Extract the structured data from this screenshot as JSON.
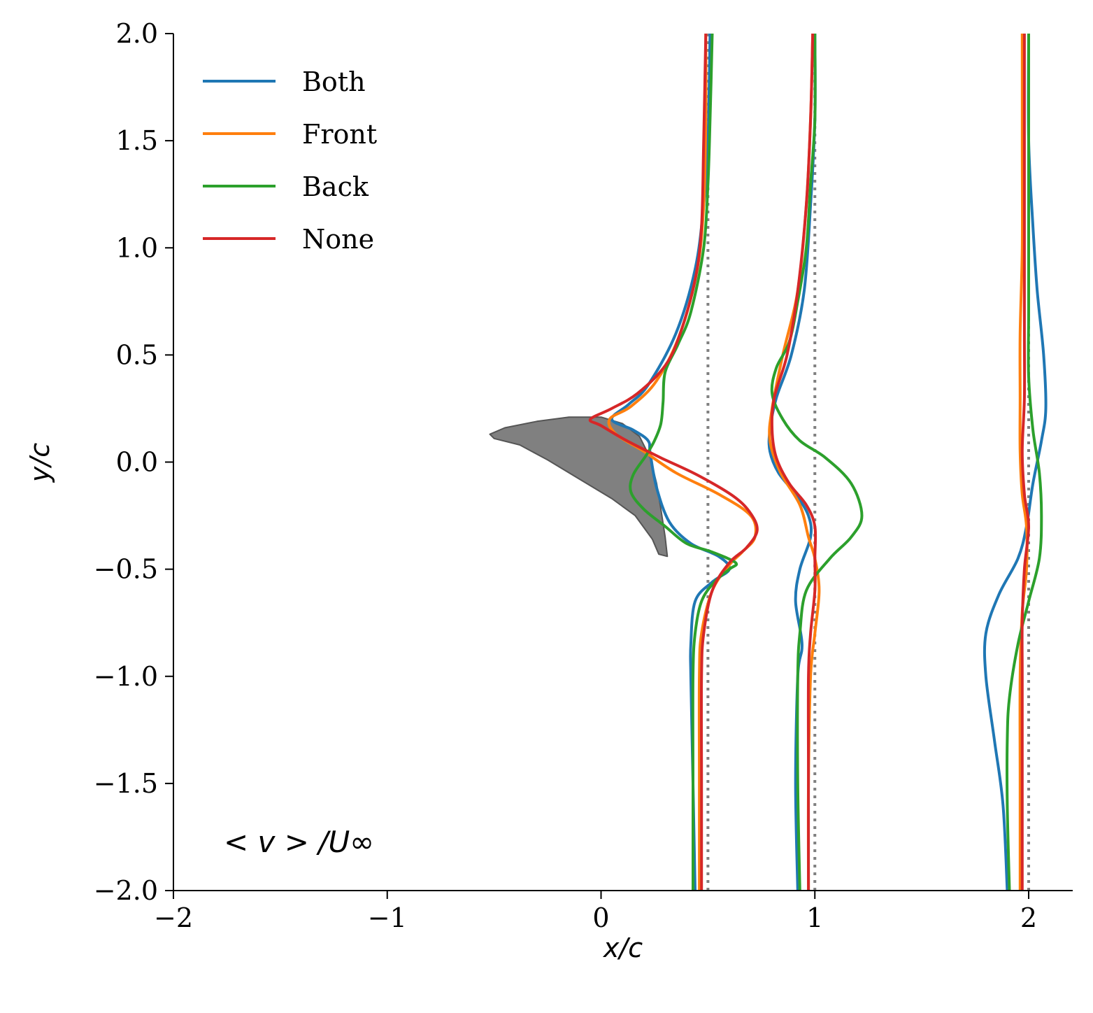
{
  "chart_data": {
    "type": "line",
    "title": "",
    "xlabel": "x/c",
    "ylabel": "y/c",
    "annotation": "< v > /U∞",
    "xlim": [
      -2,
      2.2
    ],
    "ylim": [
      -2,
      2
    ],
    "xticks": [
      -2,
      -1,
      0,
      1,
      2
    ],
    "xtick_labels": [
      "−2",
      "−1",
      "0",
      "1",
      "2"
    ],
    "yticks": [
      -2,
      -1.5,
      -1,
      -0.5,
      0,
      0.5,
      1,
      1.5,
      2
    ],
    "ytick_labels": [
      "−2.0",
      "−1.5",
      "−1.0",
      "−0.5",
      "0.0",
      "0.5",
      "1.0",
      "1.5",
      "2.0"
    ],
    "legend_position": "upper-left",
    "grid": false,
    "reference_lines": [
      0.5,
      1.0,
      2.0
    ],
    "airfoil_polygon": [
      [
        -0.52,
        0.13
      ],
      [
        -0.45,
        0.16
      ],
      [
        -0.3,
        0.19
      ],
      [
        -0.15,
        0.21
      ],
      [
        0.0,
        0.21
      ],
      [
        0.1,
        0.18
      ],
      [
        0.18,
        0.12
      ],
      [
        0.23,
        0.02
      ],
      [
        0.26,
        -0.1
      ],
      [
        0.28,
        -0.22
      ],
      [
        0.3,
        -0.35
      ],
      [
        0.31,
        -0.44
      ],
      [
        0.27,
        -0.43
      ],
      [
        0.24,
        -0.36
      ],
      [
        0.16,
        -0.25
      ],
      [
        0.05,
        -0.17
      ],
      [
        -0.1,
        -0.08
      ],
      [
        -0.25,
        0.01
      ],
      [
        -0.38,
        0.08
      ],
      [
        -0.5,
        0.11
      ]
    ],
    "series": [
      {
        "name": "Both",
        "color": "#1f77b4",
        "profiles": [
          [
            [
              0.44,
              -2.0
            ],
            [
              0.43,
              -1.5
            ],
            [
              0.42,
              -1.0
            ],
            [
              0.42,
              -0.85
            ],
            [
              0.44,
              -0.65
            ],
            [
              0.52,
              -0.56
            ],
            [
              0.6,
              -0.5
            ],
            [
              0.55,
              -0.44
            ],
            [
              0.42,
              -0.38
            ],
            [
              0.32,
              -0.28
            ],
            [
              0.26,
              -0.12
            ],
            [
              0.23,
              0.04
            ],
            [
              0.22,
              0.1
            ],
            [
              0.15,
              0.15
            ],
            [
              0.05,
              0.2
            ],
            [
              0.13,
              0.27
            ],
            [
              0.22,
              0.36
            ],
            [
              0.35,
              0.6
            ],
            [
              0.44,
              0.9
            ],
            [
              0.48,
              1.2
            ],
            [
              0.5,
              1.5
            ],
            [
              0.51,
              2.0
            ]
          ],
          [
            [
              0.92,
              -2.0
            ],
            [
              0.91,
              -1.5
            ],
            [
              0.92,
              -1.0
            ],
            [
              0.94,
              -0.85
            ],
            [
              0.91,
              -0.65
            ],
            [
              0.93,
              -0.5
            ],
            [
              0.98,
              -0.35
            ],
            [
              0.97,
              -0.25
            ],
            [
              0.91,
              -0.15
            ],
            [
              0.83,
              -0.05
            ],
            [
              0.79,
              0.05
            ],
            [
              0.79,
              0.15
            ],
            [
              0.82,
              0.3
            ],
            [
              0.89,
              0.5
            ],
            [
              0.95,
              0.8
            ],
            [
              0.98,
              1.2
            ],
            [
              1.0,
              1.6
            ],
            [
              1.0,
              2.0
            ]
          ],
          [
            [
              1.9,
              -2.0
            ],
            [
              1.88,
              -1.6
            ],
            [
              1.84,
              -1.3
            ],
            [
              1.8,
              -1.0
            ],
            [
              1.8,
              -0.8
            ],
            [
              1.86,
              -0.62
            ],
            [
              1.95,
              -0.45
            ],
            [
              1.99,
              -0.3
            ],
            [
              2.02,
              -0.1
            ],
            [
              2.06,
              0.1
            ],
            [
              2.08,
              0.25
            ],
            [
              2.07,
              0.5
            ],
            [
              2.04,
              0.8
            ],
            [
              2.02,
              1.1
            ],
            [
              2.0,
              1.5
            ],
            [
              2.0,
              2.0
            ]
          ]
        ]
      },
      {
        "name": "Front",
        "color": "#ff7f0e",
        "profiles": [
          [
            [
              0.46,
              -2.0
            ],
            [
              0.46,
              -1.5
            ],
            [
              0.46,
              -1.0
            ],
            [
              0.47,
              -0.8
            ],
            [
              0.52,
              -0.6
            ],
            [
              0.6,
              -0.48
            ],
            [
              0.66,
              -0.42
            ],
            [
              0.72,
              -0.35
            ],
            [
              0.7,
              -0.25
            ],
            [
              0.55,
              -0.15
            ],
            [
              0.35,
              -0.05
            ],
            [
              0.2,
              0.05
            ],
            [
              0.07,
              0.13
            ],
            [
              0.04,
              0.2
            ],
            [
              0.14,
              0.26
            ],
            [
              0.26,
              0.38
            ],
            [
              0.37,
              0.6
            ],
            [
              0.45,
              0.9
            ],
            [
              0.48,
              1.2
            ],
            [
              0.49,
              1.6
            ],
            [
              0.49,
              2.0
            ]
          ],
          [
            [
              0.97,
              -2.0
            ],
            [
              0.97,
              -1.5
            ],
            [
              0.98,
              -1.0
            ],
            [
              1.0,
              -0.8
            ],
            [
              1.02,
              -0.6
            ],
            [
              1.0,
              -0.45
            ],
            [
              0.97,
              -0.35
            ],
            [
              0.93,
              -0.2
            ],
            [
              0.84,
              -0.05
            ],
            [
              0.79,
              0.1
            ],
            [
              0.8,
              0.25
            ],
            [
              0.85,
              0.5
            ],
            [
              0.92,
              0.8
            ],
            [
              0.96,
              1.2
            ],
            [
              0.98,
              1.6
            ],
            [
              0.99,
              2.0
            ]
          ],
          [
            [
              1.96,
              -2.0
            ],
            [
              1.96,
              -1.5
            ],
            [
              1.96,
              -1.0
            ],
            [
              1.97,
              -0.7
            ],
            [
              1.99,
              -0.5
            ],
            [
              1.99,
              -0.3
            ],
            [
              1.97,
              -0.15
            ],
            [
              1.96,
              0.05
            ],
            [
              1.96,
              0.3
            ],
            [
              1.96,
              0.6
            ],
            [
              1.97,
              1.0
            ],
            [
              1.97,
              1.5
            ],
            [
              1.97,
              2.0
            ]
          ]
        ]
      },
      {
        "name": "Back",
        "color": "#2ca02c",
        "profiles": [
          [
            [
              0.43,
              -2.0
            ],
            [
              0.43,
              -1.5
            ],
            [
              0.43,
              -1.0
            ],
            [
              0.44,
              -0.8
            ],
            [
              0.47,
              -0.65
            ],
            [
              0.53,
              -0.56
            ],
            [
              0.6,
              -0.5
            ],
            [
              0.63,
              -0.47
            ],
            [
              0.52,
              -0.42
            ],
            [
              0.4,
              -0.38
            ],
            [
              0.3,
              -0.3
            ],
            [
              0.2,
              -0.22
            ],
            [
              0.14,
              -0.14
            ],
            [
              0.15,
              -0.06
            ],
            [
              0.21,
              0.03
            ],
            [
              0.25,
              0.1
            ],
            [
              0.28,
              0.18
            ],
            [
              0.29,
              0.28
            ],
            [
              0.3,
              0.42
            ],
            [
              0.36,
              0.55
            ],
            [
              0.42,
              0.7
            ],
            [
              0.48,
              1.0
            ],
            [
              0.5,
              1.3
            ],
            [
              0.51,
              1.6
            ],
            [
              0.52,
              2.0
            ]
          ],
          [
            [
              0.93,
              -2.0
            ],
            [
              0.92,
              -1.5
            ],
            [
              0.92,
              -1.0
            ],
            [
              0.93,
              -0.8
            ],
            [
              0.96,
              -0.6
            ],
            [
              1.07,
              -0.45
            ],
            [
              1.17,
              -0.35
            ],
            [
              1.22,
              -0.25
            ],
            [
              1.17,
              -0.1
            ],
            [
              1.05,
              0.02
            ],
            [
              0.93,
              0.1
            ],
            [
              0.85,
              0.2
            ],
            [
              0.8,
              0.32
            ],
            [
              0.82,
              0.44
            ],
            [
              0.88,
              0.56
            ],
            [
              0.92,
              0.75
            ],
            [
              0.96,
              1.0
            ],
            [
              0.98,
              1.3
            ],
            [
              1.0,
              1.6
            ],
            [
              1.0,
              2.0
            ]
          ],
          [
            [
              1.91,
              -2.0
            ],
            [
              1.9,
              -1.6
            ],
            [
              1.9,
              -1.3
            ],
            [
              1.91,
              -1.1
            ],
            [
              1.95,
              -0.85
            ],
            [
              2.0,
              -0.65
            ],
            [
              2.05,
              -0.45
            ],
            [
              2.06,
              -0.25
            ],
            [
              2.05,
              -0.05
            ],
            [
              2.02,
              0.15
            ],
            [
              2.0,
              0.4
            ],
            [
              2.0,
              0.7
            ],
            [
              2.0,
              1.0
            ],
            [
              2.0,
              1.5
            ],
            [
              2.0,
              2.0
            ]
          ]
        ]
      },
      {
        "name": "None",
        "color": "#d62728",
        "profiles": [
          [
            [
              0.47,
              -2.0
            ],
            [
              0.47,
              -1.5
            ],
            [
              0.47,
              -1.0
            ],
            [
              0.48,
              -0.8
            ],
            [
              0.52,
              -0.6
            ],
            [
              0.6,
              -0.47
            ],
            [
              0.68,
              -0.4
            ],
            [
              0.73,
              -0.32
            ],
            [
              0.7,
              -0.24
            ],
            [
              0.62,
              -0.16
            ],
            [
              0.45,
              -0.06
            ],
            [
              0.28,
              0.02
            ],
            [
              0.12,
              0.1
            ],
            [
              0.0,
              0.17
            ],
            [
              -0.05,
              0.2
            ],
            [
              0.05,
              0.25
            ],
            [
              0.17,
              0.32
            ],
            [
              0.3,
              0.45
            ],
            [
              0.37,
              0.6
            ],
            [
              0.44,
              0.85
            ],
            [
              0.47,
              1.1
            ],
            [
              0.48,
              1.5
            ],
            [
              0.49,
              2.0
            ]
          ],
          [
            [
              0.97,
              -2.0
            ],
            [
              0.97,
              -1.5
            ],
            [
              0.97,
              -1.0
            ],
            [
              0.98,
              -0.8
            ],
            [
              1.0,
              -0.6
            ],
            [
              1.0,
              -0.45
            ],
            [
              1.0,
              -0.3
            ],
            [
              0.96,
              -0.2
            ],
            [
              0.88,
              -0.1
            ],
            [
              0.82,
              0.02
            ],
            [
              0.8,
              0.15
            ],
            [
              0.81,
              0.3
            ],
            [
              0.87,
              0.5
            ],
            [
              0.92,
              0.8
            ],
            [
              0.96,
              1.2
            ],
            [
              0.98,
              1.6
            ],
            [
              0.99,
              2.0
            ]
          ],
          [
            [
              1.97,
              -2.0
            ],
            [
              1.97,
              -1.5
            ],
            [
              1.97,
              -1.0
            ],
            [
              1.97,
              -0.75
            ],
            [
              1.98,
              -0.5
            ],
            [
              2.0,
              -0.3
            ],
            [
              1.98,
              -0.15
            ],
            [
              1.97,
              0.05
            ],
            [
              1.98,
              0.3
            ],
            [
              1.98,
              0.6
            ],
            [
              1.98,
              1.0
            ],
            [
              1.98,
              1.5
            ],
            [
              1.98,
              2.0
            ]
          ]
        ]
      }
    ]
  }
}
